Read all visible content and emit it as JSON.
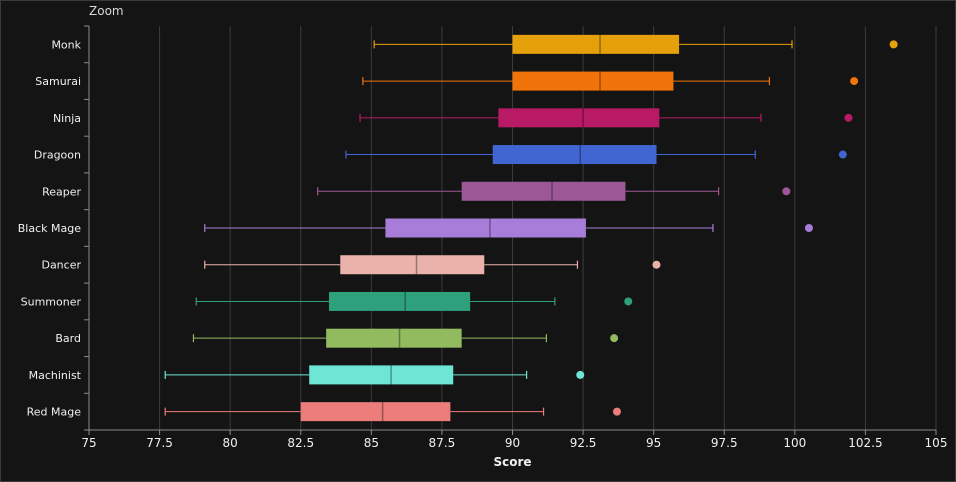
{
  "toolbar": {
    "zoom_label": "Zoom"
  },
  "chart_data": {
    "type": "boxplot",
    "orientation": "horizontal",
    "xlabel": "Score",
    "ylabel": "",
    "xlim": [
      75,
      105
    ],
    "xticks": [
      75,
      77.5,
      80,
      82.5,
      85,
      87.5,
      90,
      92.5,
      95,
      97.5,
      100,
      102.5,
      105
    ],
    "grid": true,
    "series": [
      {
        "name": "Monk",
        "color": "#e6a00a",
        "min": 85.1,
        "q1": 90.0,
        "median": 93.1,
        "q3": 95.9,
        "max": 99.9,
        "outliers": [
          103.5
        ]
      },
      {
        "name": "Samurai",
        "color": "#f07409",
        "min": 84.7,
        "q1": 90.0,
        "median": 93.1,
        "q3": 95.7,
        "max": 99.1,
        "outliers": [
          102.1
        ]
      },
      {
        "name": "Ninja",
        "color": "#b81a65",
        "min": 84.6,
        "q1": 89.5,
        "median": 92.5,
        "q3": 95.2,
        "max": 98.8,
        "outliers": [
          101.9
        ]
      },
      {
        "name": "Dragoon",
        "color": "#4166d1",
        "min": 84.1,
        "q1": 89.3,
        "median": 92.4,
        "q3": 95.1,
        "max": 98.6,
        "outliers": [
          101.7
        ]
      },
      {
        "name": "Reaper",
        "color": "#9c5896",
        "min": 83.1,
        "q1": 88.2,
        "median": 91.4,
        "q3": 94.0,
        "max": 97.3,
        "outliers": [
          99.7
        ]
      },
      {
        "name": "Black Mage",
        "color": "#a87dd9",
        "min": 79.1,
        "q1": 85.5,
        "median": 89.2,
        "q3": 92.6,
        "max": 97.1,
        "outliers": [
          100.5
        ]
      },
      {
        "name": "Dancer",
        "color": "#e9b3ab",
        "min": 79.1,
        "q1": 83.9,
        "median": 86.6,
        "q3": 89.0,
        "max": 92.3,
        "outliers": [
          95.1
        ]
      },
      {
        "name": "Summoner",
        "color": "#2fa07c",
        "min": 78.8,
        "q1": 83.5,
        "median": 86.2,
        "q3": 88.5,
        "max": 91.5,
        "outliers": [
          94.1
        ]
      },
      {
        "name": "Bard",
        "color": "#92ba5e",
        "min": 78.7,
        "q1": 83.4,
        "median": 86.0,
        "q3": 88.2,
        "max": 91.2,
        "outliers": [
          93.6
        ]
      },
      {
        "name": "Machinist",
        "color": "#6ee6d6",
        "min": 77.7,
        "q1": 82.8,
        "median": 85.7,
        "q3": 87.9,
        "max": 90.5,
        "outliers": [
          92.4
        ]
      },
      {
        "name": "Red Mage",
        "color": "#ec7d7a",
        "min": 77.7,
        "q1": 82.5,
        "median": 85.4,
        "q3": 87.8,
        "max": 91.1,
        "outliers": [
          93.7
        ]
      }
    ]
  }
}
